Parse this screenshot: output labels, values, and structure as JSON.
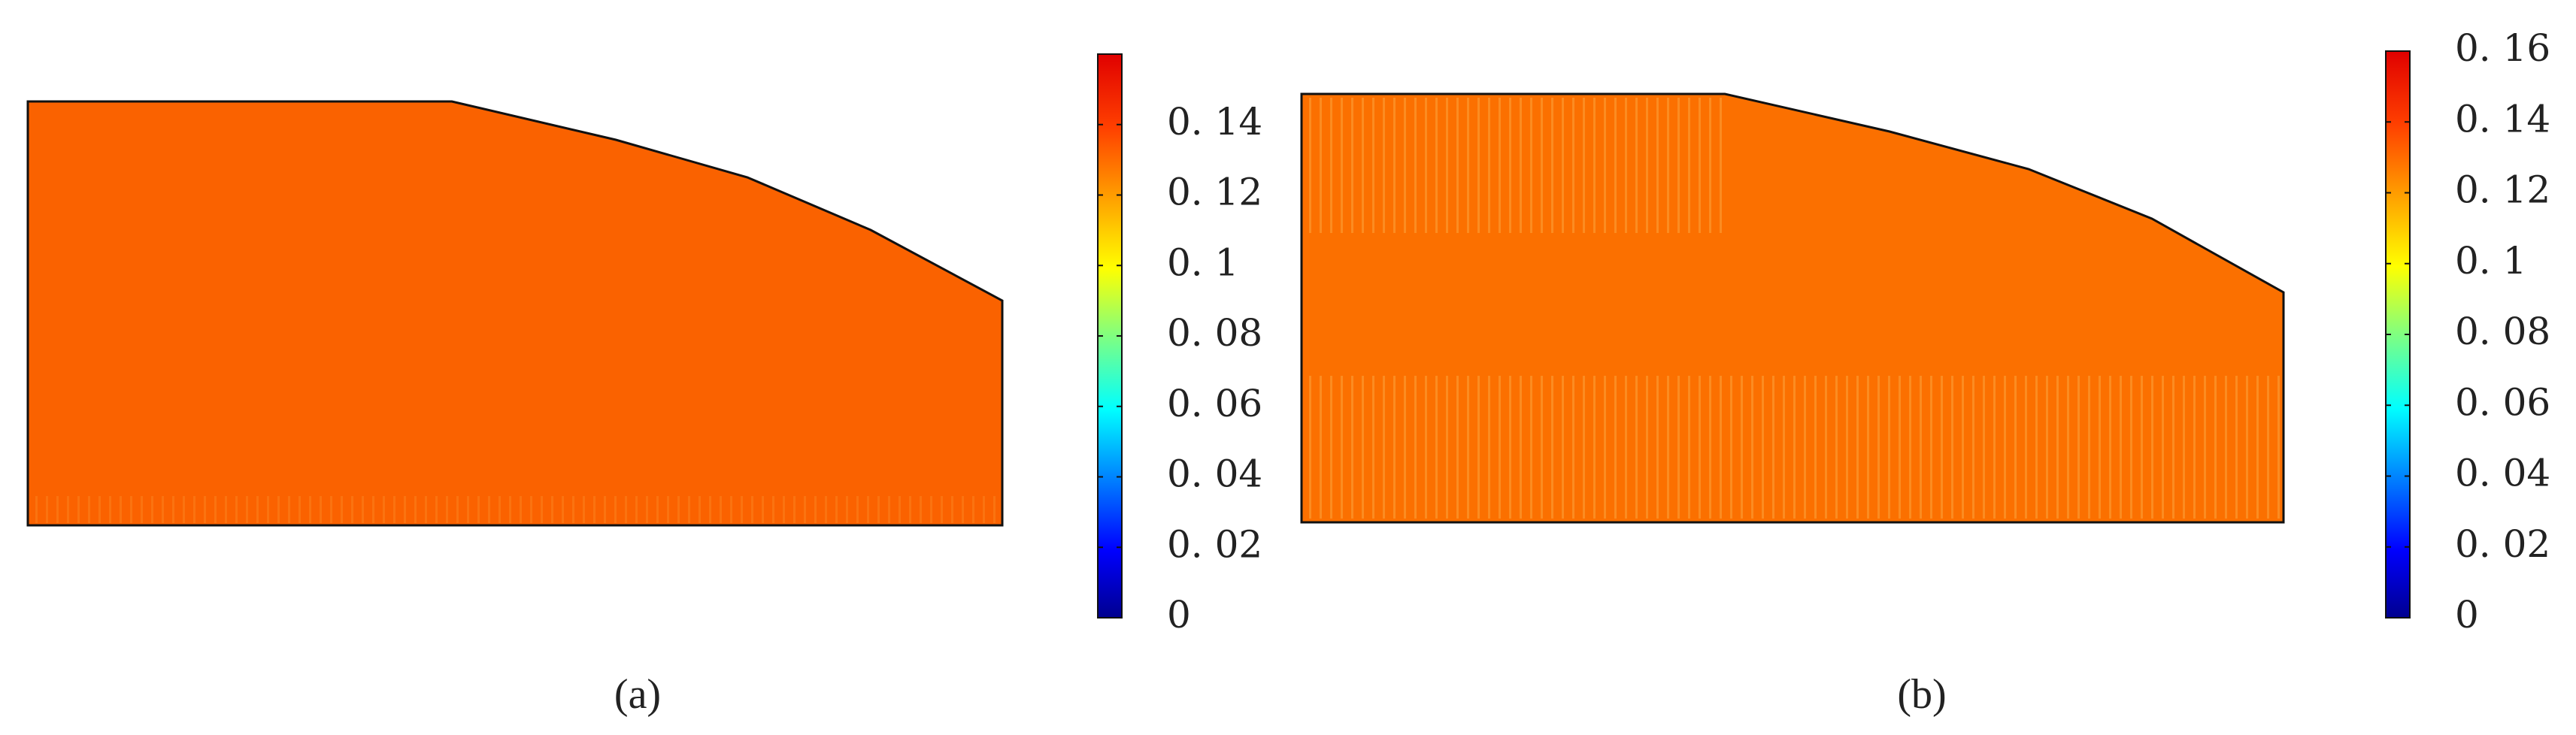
{
  "chart_data": [
    {
      "type": "field",
      "title": "(a)",
      "color": "#fa6200",
      "clim": [
        0,
        0.16
      ],
      "cticks": [
        0,
        {
          "value": 0.02,
          "label": "0. 02"
        },
        {
          "value": 0.04,
          "label": "0. 04"
        },
        {
          "value": 0.06,
          "label": "0. 06"
        },
        {
          "value": 0.08,
          "label": "0. 08"
        },
        {
          "value": 0.1,
          "label": "0. 1"
        },
        {
          "value": 0.12,
          "label": "0. 12"
        },
        {
          "value": 0.14,
          "label": "0. 14"
        }
      ]
    },
    {
      "type": "field",
      "title": "(b)",
      "color": "#fb7000",
      "clim": [
        0,
        0.16
      ],
      "cticks": [
        0,
        {
          "value": 0.02,
          "label": "0. 02"
        },
        {
          "value": 0.04,
          "label": "0. 04"
        },
        {
          "value": 0.06,
          "label": "0. 06"
        },
        {
          "value": 0.08,
          "label": "0. 08"
        },
        {
          "value": 0.1,
          "label": "0. 1"
        },
        {
          "value": 0.12,
          "label": "0. 12"
        },
        {
          "value": 0.14,
          "label": "0. 14"
        },
        {
          "value": 0.16,
          "label": "0. 16"
        }
      ]
    }
  ]
}
